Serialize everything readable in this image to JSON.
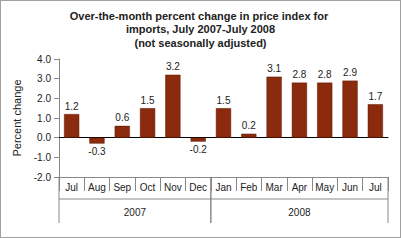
{
  "chart_data": {
    "type": "bar",
    "title": "Over-the-month percent change in price index for imports, July 2007-July 2008",
    "subtitle": "(not seasonally adjusted)",
    "y_label": "Percent change",
    "categories": [
      "Jul",
      "Aug",
      "Sep",
      "Oct",
      "Nov",
      "Dec",
      "Jan",
      "Feb",
      "Mar",
      "Apr",
      "May",
      "Jun",
      "Jul"
    ],
    "groups": [
      {
        "name": "2007",
        "count": 6
      },
      {
        "name": "2008",
        "count": 7
      }
    ],
    "values": [
      1.2,
      -0.3,
      0.6,
      1.5,
      3.2,
      -0.2,
      1.5,
      0.2,
      3.1,
      2.8,
      2.8,
      2.9,
      1.7
    ],
    "color": "#8b2a0c",
    "ylim": [
      -2,
      4
    ],
    "yticks": [
      {
        "value": -2,
        "label": "-2.0"
      },
      {
        "value": -1,
        "label": "-1.0"
      },
      {
        "value": 0,
        "label": "0.0"
      },
      {
        "value": 1,
        "label": "1.0"
      },
      {
        "value": 2,
        "label": "2.0"
      },
      {
        "value": 3,
        "label": "3.0"
      },
      {
        "value": 4,
        "label": "4.0"
      }
    ],
    "grid": false,
    "data_labels": true
  }
}
